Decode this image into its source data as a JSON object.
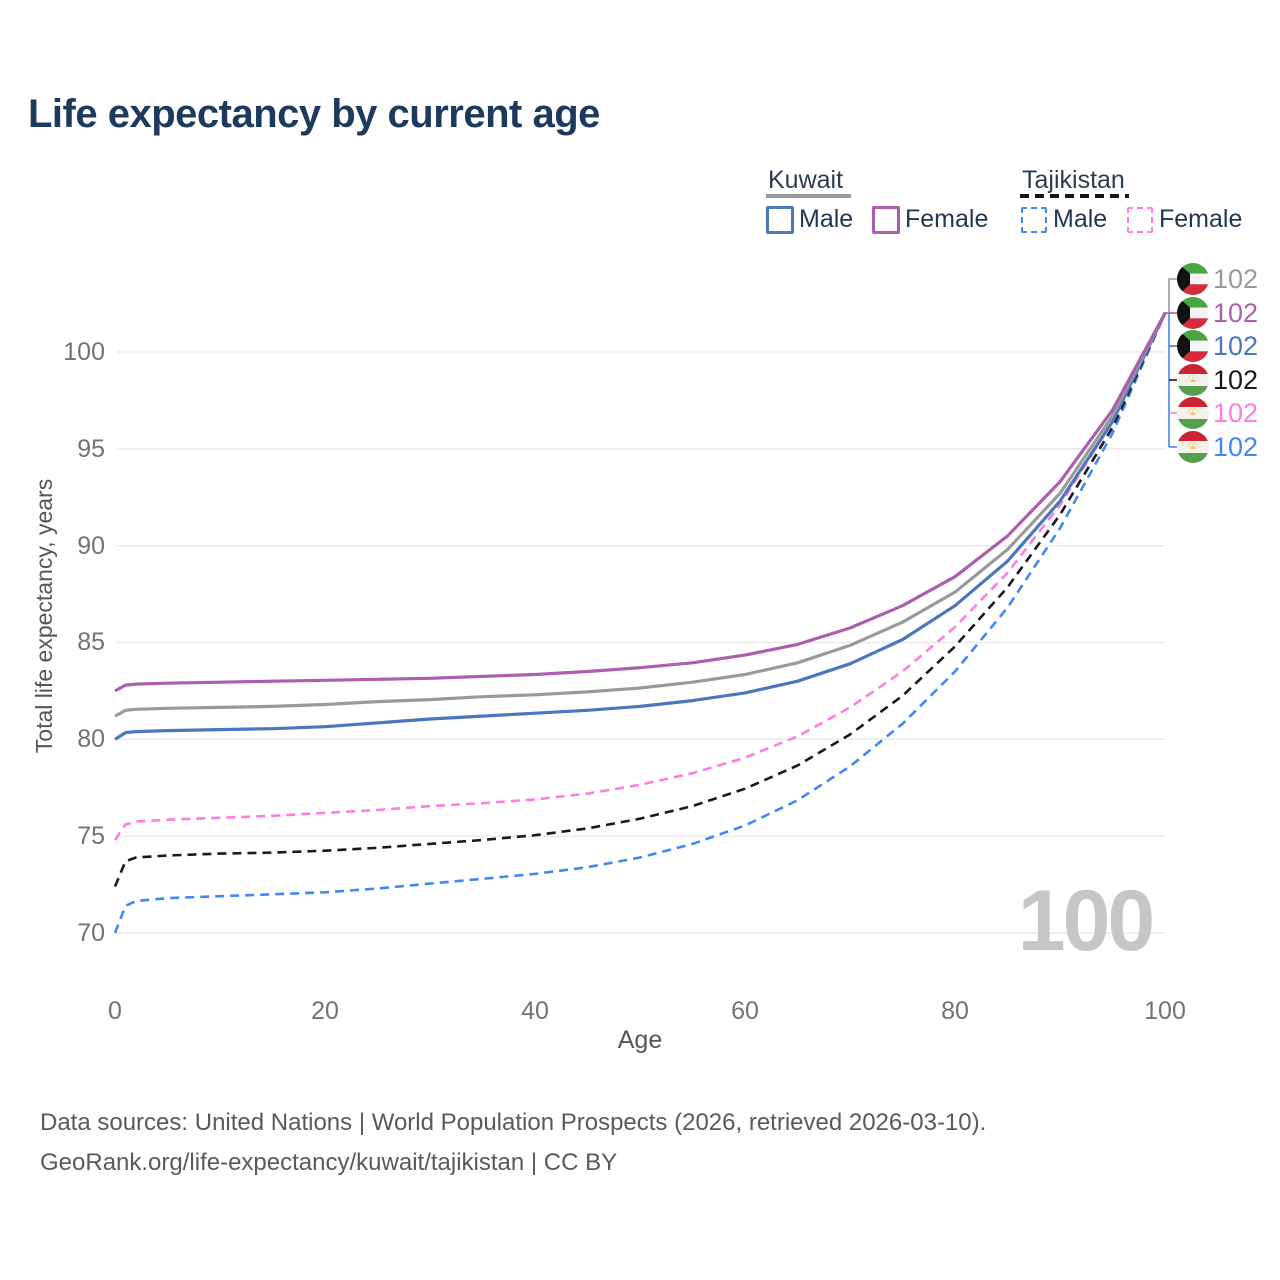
{
  "title": "Life expectancy by current age",
  "legend": {
    "groups": [
      {
        "label": "Kuwait",
        "line_style": "solid",
        "underline_color": "#9a9a9a",
        "items": [
          {
            "label": "Male",
            "color": "#4a77bd",
            "dashed": false
          },
          {
            "label": "Female",
            "color": "#ab5fae",
            "dashed": false
          }
        ]
      },
      {
        "label": "Tajikistan",
        "line_style": "dashed",
        "underline_color": "#161616",
        "items": [
          {
            "label": "Male",
            "color": "#4287f5",
            "dashed": true
          },
          {
            "label": "Female",
            "color": "#ff7ce3",
            "dashed": true
          }
        ]
      }
    ]
  },
  "chart_data": {
    "type": "line",
    "title": "Life expectancy by current age",
    "xlabel": "Age",
    "ylabel": "Total life expectancy, years",
    "x_ticks": [
      0,
      20,
      40,
      60,
      80,
      100
    ],
    "y_ticks": [
      70,
      75,
      80,
      85,
      90,
      95,
      100
    ],
    "xlim": [
      0,
      100
    ],
    "ylim": [
      68.5,
      103
    ],
    "grid": "horizontal",
    "watermark": "100",
    "x": [
      0,
      1,
      2,
      5,
      10,
      15,
      20,
      25,
      30,
      35,
      40,
      45,
      50,
      55,
      60,
      65,
      70,
      75,
      80,
      85,
      90,
      95,
      100
    ],
    "series": [
      {
        "name": "Tajikistan Male",
        "color": "#4287f5",
        "dashed": true,
        "values": [
          70.0,
          71.4,
          71.65,
          71.8,
          71.9,
          72.0,
          72.1,
          72.3,
          72.55,
          72.8,
          73.05,
          73.4,
          73.9,
          74.6,
          75.55,
          76.85,
          78.6,
          80.8,
          83.5,
          86.8,
          90.9,
          95.8,
          102
        ]
      },
      {
        "name": "Tajikistan Both sexes",
        "color": "#1a1a1a",
        "dashed": true,
        "values": [
          72.4,
          73.7,
          73.9,
          74.0,
          74.1,
          74.15,
          74.25,
          74.4,
          74.6,
          74.8,
          75.05,
          75.4,
          75.9,
          76.55,
          77.45,
          78.65,
          80.25,
          82.25,
          84.8,
          87.85,
          91.6,
          96.1,
          102
        ]
      },
      {
        "name": "Tajikistan Female",
        "color": "#ff7ce3",
        "dashed": true,
        "values": [
          74.8,
          75.6,
          75.75,
          75.85,
          75.95,
          76.05,
          76.2,
          76.35,
          76.55,
          76.7,
          76.9,
          77.2,
          77.65,
          78.25,
          79.05,
          80.15,
          81.65,
          83.5,
          85.8,
          88.6,
          92.1,
          96.4,
          102
        ]
      },
      {
        "name": "Kuwait Male",
        "color": "#4a77bd",
        "dashed": false,
        "values": [
          80.0,
          80.35,
          80.4,
          80.45,
          80.5,
          80.55,
          80.65,
          80.85,
          81.05,
          81.2,
          81.35,
          81.5,
          81.7,
          82.0,
          82.4,
          83.0,
          83.9,
          85.15,
          86.9,
          89.2,
          92.3,
          96.4,
          102
        ]
      },
      {
        "name": "Kuwait Both sexes",
        "color": "#9a9a9a",
        "dashed": false,
        "values": [
          81.2,
          81.5,
          81.55,
          81.6,
          81.65,
          81.7,
          81.8,
          81.95,
          82.05,
          82.2,
          82.3,
          82.45,
          82.65,
          82.95,
          83.35,
          83.95,
          84.85,
          86.05,
          87.6,
          89.8,
          92.7,
          96.7,
          102
        ]
      },
      {
        "name": "Kuwait Female",
        "color": "#ab5fae",
        "dashed": false,
        "values": [
          82.5,
          82.8,
          82.85,
          82.9,
          82.95,
          83.0,
          83.05,
          83.1,
          83.15,
          83.25,
          83.35,
          83.5,
          83.7,
          83.95,
          84.35,
          84.9,
          85.75,
          86.9,
          88.4,
          90.5,
          93.3,
          97.0,
          102
        ]
      }
    ]
  },
  "end_labels": [
    {
      "flag": "kuwait",
      "value": "102",
      "color": "#9a9a9a"
    },
    {
      "flag": "kuwait",
      "value": "102",
      "color": "#ab5fae"
    },
    {
      "flag": "kuwait",
      "value": "102",
      "color": "#4a77bd"
    },
    {
      "flag": "tajikistan",
      "value": "102",
      "color": "#1a1a1a"
    },
    {
      "flag": "tajikistan",
      "value": "102",
      "color": "#ff7ce3"
    },
    {
      "flag": "tajikistan",
      "value": "102",
      "color": "#4287f5"
    }
  ],
  "footer": {
    "line1": "Data sources: United Nations | World Population Prospects (2026, retrieved 2026-03-10).",
    "line2": "GeoRank.org/life-expectancy/kuwait/tajikistan | CC BY"
  }
}
